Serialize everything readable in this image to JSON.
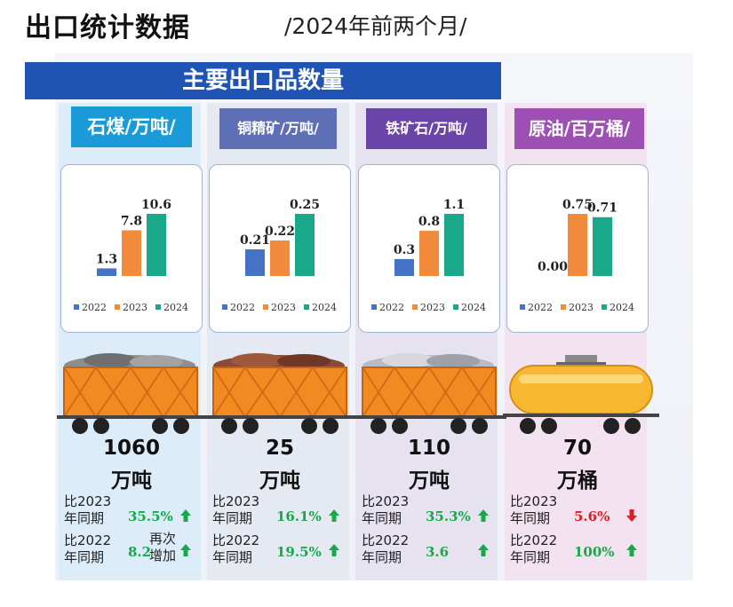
{
  "page": {
    "title": "出口统计数据",
    "subtitle": "/2024年前两个月/",
    "banner": "主要出口品数量"
  },
  "colors": {
    "banner": "#1f54b4",
    "series_2022": "#4472c4",
    "series_2023": "#f28a3c",
    "series_2024": "#1aa88a",
    "up": "#1aa84a",
    "down": "#e02020"
  },
  "chart_data": [
    {
      "type": "bar",
      "title": "石煤/万吨/",
      "categories": [
        "2022",
        "2023",
        "2024"
      ],
      "values": [
        1.3,
        7.8,
        10.6
      ],
      "value_labels": [
        "1.3",
        "7.8",
        "10.6"
      ]
    },
    {
      "type": "bar",
      "title": "铜精矿/万吨/",
      "categories": [
        "2022",
        "2023",
        "2024"
      ],
      "values": [
        0.21,
        0.22,
        0.25
      ],
      "value_labels": [
        "0.21",
        "0.22",
        "0.25"
      ]
    },
    {
      "type": "bar",
      "title": "铁矿石/万吨/",
      "categories": [
        "2022",
        "2023",
        "2024"
      ],
      "values": [
        0.3,
        0.8,
        1.1
      ],
      "value_labels": [
        "0.3",
        "0.8",
        "1.1"
      ]
    },
    {
      "type": "bar",
      "title": "原油/百万桶/",
      "categories": [
        "2022",
        "2023",
        "2024"
      ],
      "values": [
        0.0,
        0.75,
        0.71
      ],
      "value_labels": [
        "0.00",
        "0.75",
        "0.71"
      ]
    }
  ],
  "cards": [
    {
      "amount": "1060",
      "unit": "万吨",
      "vs2023_label": "比2023\n年同期",
      "vs2023_pct": "35.5%",
      "vs2023_dir": "up",
      "vs2022_label": "比2022\n年同期",
      "vs2022_pct": "8.2",
      "vs2022_note": "再次\n增加",
      "vs2022_dir": "up"
    },
    {
      "amount": "25",
      "unit": "万吨",
      "vs2023_label": "比2023\n年同期",
      "vs2023_pct": "16.1%",
      "vs2023_dir": "up",
      "vs2022_label": "比2022\n年同期",
      "vs2022_pct": "19.5%",
      "vs2022_note": "",
      "vs2022_dir": "up"
    },
    {
      "amount": "110",
      "unit": "万吨",
      "vs2023_label": "比2023\n年同期",
      "vs2023_pct": "35.3%",
      "vs2023_dir": "up",
      "vs2022_label": "比2022\n年同期",
      "vs2022_pct": "3.6",
      "vs2022_note": "",
      "vs2022_dir": "up"
    },
    {
      "amount": "70",
      "unit": "万桶",
      "vs2023_label": "比2023\n年同期",
      "vs2023_pct": "5.6%",
      "vs2023_dir": "down",
      "vs2022_label": "比2022\n年同期",
      "vs2022_pct": "100%",
      "vs2022_note": "",
      "vs2022_dir": "up"
    }
  ]
}
